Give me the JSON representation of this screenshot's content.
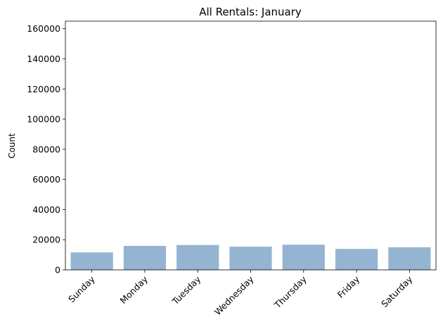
{
  "chart_data": {
    "type": "bar",
    "title": "All Rentals: January",
    "xlabel": "",
    "ylabel": "Count",
    "categories": [
      "Sunday",
      "Monday",
      "Tuesday",
      "Wednesday",
      "Thursday",
      "Friday",
      "Saturday"
    ],
    "values": [
      11600,
      15900,
      16500,
      15400,
      16700,
      13900,
      15000
    ],
    "ylim": [
      0,
      165000
    ],
    "yticks": [
      0,
      20000,
      40000,
      60000,
      80000,
      100000,
      120000,
      140000,
      160000
    ],
    "bar_color": "#95b4d2",
    "grid": false,
    "legend": "none"
  }
}
